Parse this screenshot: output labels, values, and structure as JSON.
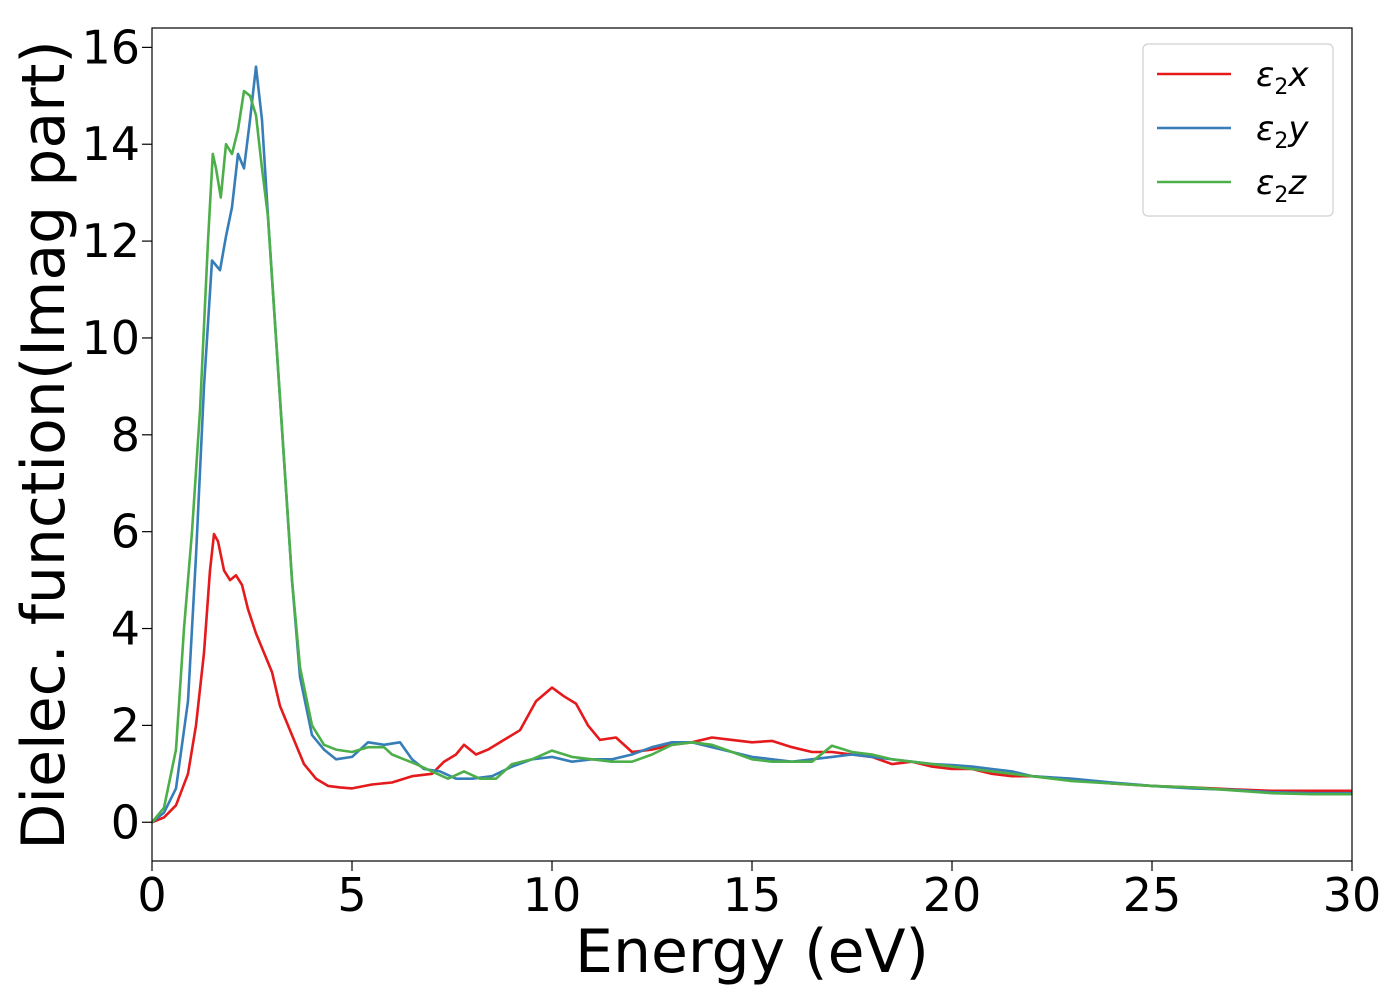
{
  "chart_data": {
    "type": "line",
    "xlabel": "Energy (eV)",
    "ylabel": "Dielec. function(Imag part)",
    "xlim": [
      0,
      30
    ],
    "ylim": [
      -0.8,
      16.4
    ],
    "xticks": [
      0,
      5,
      10,
      15,
      20,
      25,
      30
    ],
    "yticks": [
      0,
      2,
      4,
      6,
      8,
      10,
      12,
      14,
      16
    ],
    "grid": false,
    "legend_position": "top-right",
    "series": [
      {
        "name": "ε2x",
        "legend": {
          "base": "ε",
          "sub": "2",
          "suffix": "x"
        },
        "color": "#e41a1c",
        "points": [
          [
            0,
            0
          ],
          [
            0.3,
            0.1
          ],
          [
            0.6,
            0.35
          ],
          [
            0.9,
            1.0
          ],
          [
            1.1,
            2.0
          ],
          [
            1.3,
            3.5
          ],
          [
            1.45,
            5.2
          ],
          [
            1.55,
            5.95
          ],
          [
            1.65,
            5.8
          ],
          [
            1.8,
            5.2
          ],
          [
            1.95,
            5.0
          ],
          [
            2.1,
            5.1
          ],
          [
            2.25,
            4.9
          ],
          [
            2.4,
            4.4
          ],
          [
            2.6,
            3.9
          ],
          [
            2.8,
            3.5
          ],
          [
            3.0,
            3.1
          ],
          [
            3.2,
            2.4
          ],
          [
            3.5,
            1.8
          ],
          [
            3.8,
            1.2
          ],
          [
            4.1,
            0.9
          ],
          [
            4.4,
            0.75
          ],
          [
            4.7,
            0.72
          ],
          [
            5.0,
            0.7
          ],
          [
            5.5,
            0.78
          ],
          [
            6.0,
            0.82
          ],
          [
            6.5,
            0.95
          ],
          [
            7.0,
            1.0
          ],
          [
            7.3,
            1.25
          ],
          [
            7.6,
            1.4
          ],
          [
            7.8,
            1.6
          ],
          [
            8.1,
            1.4
          ],
          [
            8.4,
            1.5
          ],
          [
            8.8,
            1.7
          ],
          [
            9.2,
            1.9
          ],
          [
            9.6,
            2.5
          ],
          [
            10.0,
            2.78
          ],
          [
            10.3,
            2.6
          ],
          [
            10.6,
            2.45
          ],
          [
            10.9,
            2.0
          ],
          [
            11.2,
            1.7
          ],
          [
            11.6,
            1.75
          ],
          [
            12.0,
            1.45
          ],
          [
            12.5,
            1.5
          ],
          [
            13.0,
            1.6
          ],
          [
            13.5,
            1.65
          ],
          [
            14.0,
            1.75
          ],
          [
            14.5,
            1.7
          ],
          [
            15.0,
            1.65
          ],
          [
            15.5,
            1.68
          ],
          [
            16.0,
            1.55
          ],
          [
            16.5,
            1.45
          ],
          [
            17.0,
            1.45
          ],
          [
            17.5,
            1.4
          ],
          [
            18.0,
            1.35
          ],
          [
            18.5,
            1.2
          ],
          [
            19.0,
            1.25
          ],
          [
            19.5,
            1.15
          ],
          [
            20.0,
            1.1
          ],
          [
            20.5,
            1.1
          ],
          [
            21.0,
            1.0
          ],
          [
            21.5,
            0.95
          ],
          [
            22.0,
            0.95
          ],
          [
            23.0,
            0.88
          ],
          [
            24.0,
            0.8
          ],
          [
            25.0,
            0.75
          ],
          [
            26.0,
            0.72
          ],
          [
            27.0,
            0.68
          ],
          [
            28.0,
            0.65
          ],
          [
            29.0,
            0.65
          ],
          [
            30.0,
            0.65
          ]
        ]
      },
      {
        "name": "ε2y",
        "legend": {
          "base": "ε",
          "sub": "2",
          "suffix": "y"
        },
        "color": "#377eb8",
        "points": [
          [
            0,
            0
          ],
          [
            0.3,
            0.2
          ],
          [
            0.6,
            0.7
          ],
          [
            0.9,
            2.5
          ],
          [
            1.1,
            5.5
          ],
          [
            1.3,
            9.0
          ],
          [
            1.5,
            11.6
          ],
          [
            1.7,
            11.4
          ],
          [
            1.85,
            12.1
          ],
          [
            2.0,
            12.7
          ],
          [
            2.15,
            13.8
          ],
          [
            2.3,
            13.5
          ],
          [
            2.45,
            14.5
          ],
          [
            2.6,
            15.6
          ],
          [
            2.75,
            14.5
          ],
          [
            2.9,
            12.5
          ],
          [
            3.1,
            10.0
          ],
          [
            3.3,
            7.5
          ],
          [
            3.5,
            5.0
          ],
          [
            3.7,
            3.0
          ],
          [
            4.0,
            1.8
          ],
          [
            4.3,
            1.5
          ],
          [
            4.6,
            1.3
          ],
          [
            5.0,
            1.35
          ],
          [
            5.4,
            1.65
          ],
          [
            5.8,
            1.6
          ],
          [
            6.2,
            1.65
          ],
          [
            6.5,
            1.3
          ],
          [
            6.8,
            1.1
          ],
          [
            7.2,
            1.05
          ],
          [
            7.6,
            0.9
          ],
          [
            8.0,
            0.9
          ],
          [
            8.5,
            0.95
          ],
          [
            9.0,
            1.15
          ],
          [
            9.5,
            1.3
          ],
          [
            10.0,
            1.35
          ],
          [
            10.5,
            1.25
          ],
          [
            11.0,
            1.3
          ],
          [
            11.5,
            1.3
          ],
          [
            12.0,
            1.4
          ],
          [
            12.5,
            1.55
          ],
          [
            13.0,
            1.65
          ],
          [
            13.5,
            1.65
          ],
          [
            14.0,
            1.55
          ],
          [
            14.5,
            1.45
          ],
          [
            15.0,
            1.35
          ],
          [
            15.5,
            1.3
          ],
          [
            16.0,
            1.25
          ],
          [
            16.5,
            1.3
          ],
          [
            17.0,
            1.35
          ],
          [
            17.5,
            1.4
          ],
          [
            18.0,
            1.35
          ],
          [
            18.5,
            1.3
          ],
          [
            19.0,
            1.25
          ],
          [
            19.5,
            1.2
          ],
          [
            20.0,
            1.18
          ],
          [
            20.5,
            1.15
          ],
          [
            21.0,
            1.1
          ],
          [
            21.5,
            1.05
          ],
          [
            22.0,
            0.95
          ],
          [
            23.0,
            0.9
          ],
          [
            24.0,
            0.82
          ],
          [
            25.0,
            0.75
          ],
          [
            26.0,
            0.7
          ],
          [
            27.0,
            0.67
          ],
          [
            28.0,
            0.62
          ],
          [
            29.0,
            0.6
          ],
          [
            30.0,
            0.6
          ]
        ]
      },
      {
        "name": "ε2z",
        "legend": {
          "base": "ε",
          "sub": "2",
          "suffix": "z"
        },
        "color": "#4daf4a",
        "points": [
          [
            0,
            0
          ],
          [
            0.3,
            0.3
          ],
          [
            0.6,
            1.5
          ],
          [
            0.8,
            4.0
          ],
          [
            1.0,
            6.0
          ],
          [
            1.2,
            8.5
          ],
          [
            1.4,
            12.0
          ],
          [
            1.52,
            13.8
          ],
          [
            1.6,
            13.5
          ],
          [
            1.72,
            12.9
          ],
          [
            1.85,
            14.0
          ],
          [
            2.0,
            13.8
          ],
          [
            2.15,
            14.3
          ],
          [
            2.3,
            15.1
          ],
          [
            2.45,
            15.0
          ],
          [
            2.6,
            14.6
          ],
          [
            2.75,
            13.5
          ],
          [
            2.9,
            12.5
          ],
          [
            3.1,
            10.0
          ],
          [
            3.3,
            7.5
          ],
          [
            3.5,
            5.0
          ],
          [
            3.7,
            3.2
          ],
          [
            4.0,
            2.0
          ],
          [
            4.3,
            1.6
          ],
          [
            4.6,
            1.5
          ],
          [
            5.0,
            1.45
          ],
          [
            5.4,
            1.55
          ],
          [
            5.8,
            1.55
          ],
          [
            6.0,
            1.4
          ],
          [
            6.3,
            1.3
          ],
          [
            6.6,
            1.2
          ],
          [
            7.0,
            1.05
          ],
          [
            7.4,
            0.9
          ],
          [
            7.8,
            1.05
          ],
          [
            8.2,
            0.9
          ],
          [
            8.6,
            0.9
          ],
          [
            9.0,
            1.2
          ],
          [
            9.5,
            1.3
          ],
          [
            10.0,
            1.48
          ],
          [
            10.5,
            1.35
          ],
          [
            11.0,
            1.3
          ],
          [
            11.5,
            1.25
          ],
          [
            12.0,
            1.25
          ],
          [
            12.5,
            1.4
          ],
          [
            13.0,
            1.6
          ],
          [
            13.5,
            1.65
          ],
          [
            14.0,
            1.6
          ],
          [
            14.5,
            1.45
          ],
          [
            15.0,
            1.3
          ],
          [
            15.5,
            1.25
          ],
          [
            16.0,
            1.25
          ],
          [
            16.5,
            1.25
          ],
          [
            17.0,
            1.58
          ],
          [
            17.5,
            1.45
          ],
          [
            18.0,
            1.4
          ],
          [
            18.5,
            1.3
          ],
          [
            19.0,
            1.25
          ],
          [
            19.5,
            1.2
          ],
          [
            20.0,
            1.15
          ],
          [
            20.5,
            1.1
          ],
          [
            21.0,
            1.05
          ],
          [
            21.5,
            1.0
          ],
          [
            22.0,
            0.95
          ],
          [
            23.0,
            0.85
          ],
          [
            24.0,
            0.8
          ],
          [
            25.0,
            0.75
          ],
          [
            26.0,
            0.72
          ],
          [
            27.0,
            0.66
          ],
          [
            28.0,
            0.6
          ],
          [
            29.0,
            0.58
          ],
          [
            30.0,
            0.58
          ]
        ]
      }
    ]
  }
}
